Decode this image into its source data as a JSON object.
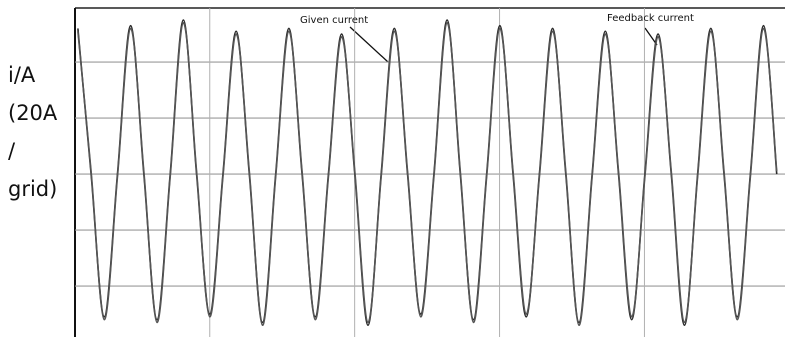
{
  "chart_data": {
    "type": "line",
    "ylabel": [
      "i/A",
      "(20A",
      "/",
      "grid)"
    ],
    "x": [
      0.9,
      1.81,
      2.72,
      3.63,
      4.54,
      5.45,
      6.36,
      7.27,
      8.18,
      9.09,
      10.0,
      10.91,
      11.82,
      12.73,
      13.64,
      14.55,
      15.46,
      16.37,
      17.28,
      18.19,
      19.1,
      20.01,
      20.92,
      21.83,
      22.74,
      23.65,
      24.56,
      25.47,
      26.38,
      27.29,
      28.2,
      29.11,
      30.02,
      30.93,
      31.84,
      32.75,
      33.66,
      34.57,
      35.48,
      36.39,
      37.3,
      38.21,
      39.12,
      40.03,
      40.94,
      41.85,
      42.76,
      43.67,
      44.58,
      45.49,
      46.4,
      47.31,
      48.22,
      49.13
    ],
    "series": [
      {
        "name": "Given current",
        "color": "#2b2b2b",
        "values": [
          52,
          0,
          -51,
          0,
          53,
          0,
          -52,
          0,
          55,
          0,
          -50,
          0,
          51,
          0,
          -53,
          0,
          52,
          0,
          -51,
          0,
          50,
          0,
          -54,
          0,
          52,
          0,
          -50,
          0,
          55,
          0,
          -52,
          0,
          53,
          0,
          -51,
          0,
          52,
          0,
          -53,
          0,
          51,
          0,
          -52,
          0,
          50,
          0,
          -54,
          0,
          52,
          0,
          -51,
          0,
          53,
          0
        ]
      },
      {
        "name": "Feedback current",
        "color": "#555555",
        "values": [
          51,
          1,
          -52,
          -1,
          52,
          1,
          -53,
          -1,
          54,
          1,
          -51,
          -1,
          50,
          1,
          -54,
          -1,
          51,
          1,
          -52,
          -1,
          49,
          1,
          -53,
          -1,
          51,
          1,
          -51,
          -1,
          54,
          1,
          -53,
          -1,
          52,
          1,
          -50,
          -1,
          51,
          1,
          -54,
          -1,
          50,
          1,
          -51,
          -1,
          49,
          1,
          -53,
          -1,
          51,
          1,
          -52,
          -1,
          52,
          1
        ]
      }
    ],
    "xlim": [
      0.7,
      49.7
    ],
    "xticks": [
      10,
      20,
      30,
      40
    ],
    "ylim": [
      -58.2,
      59.3
    ],
    "yticks": [
      -40,
      -20,
      0,
      20,
      40
    ],
    "grid": true
  }
}
